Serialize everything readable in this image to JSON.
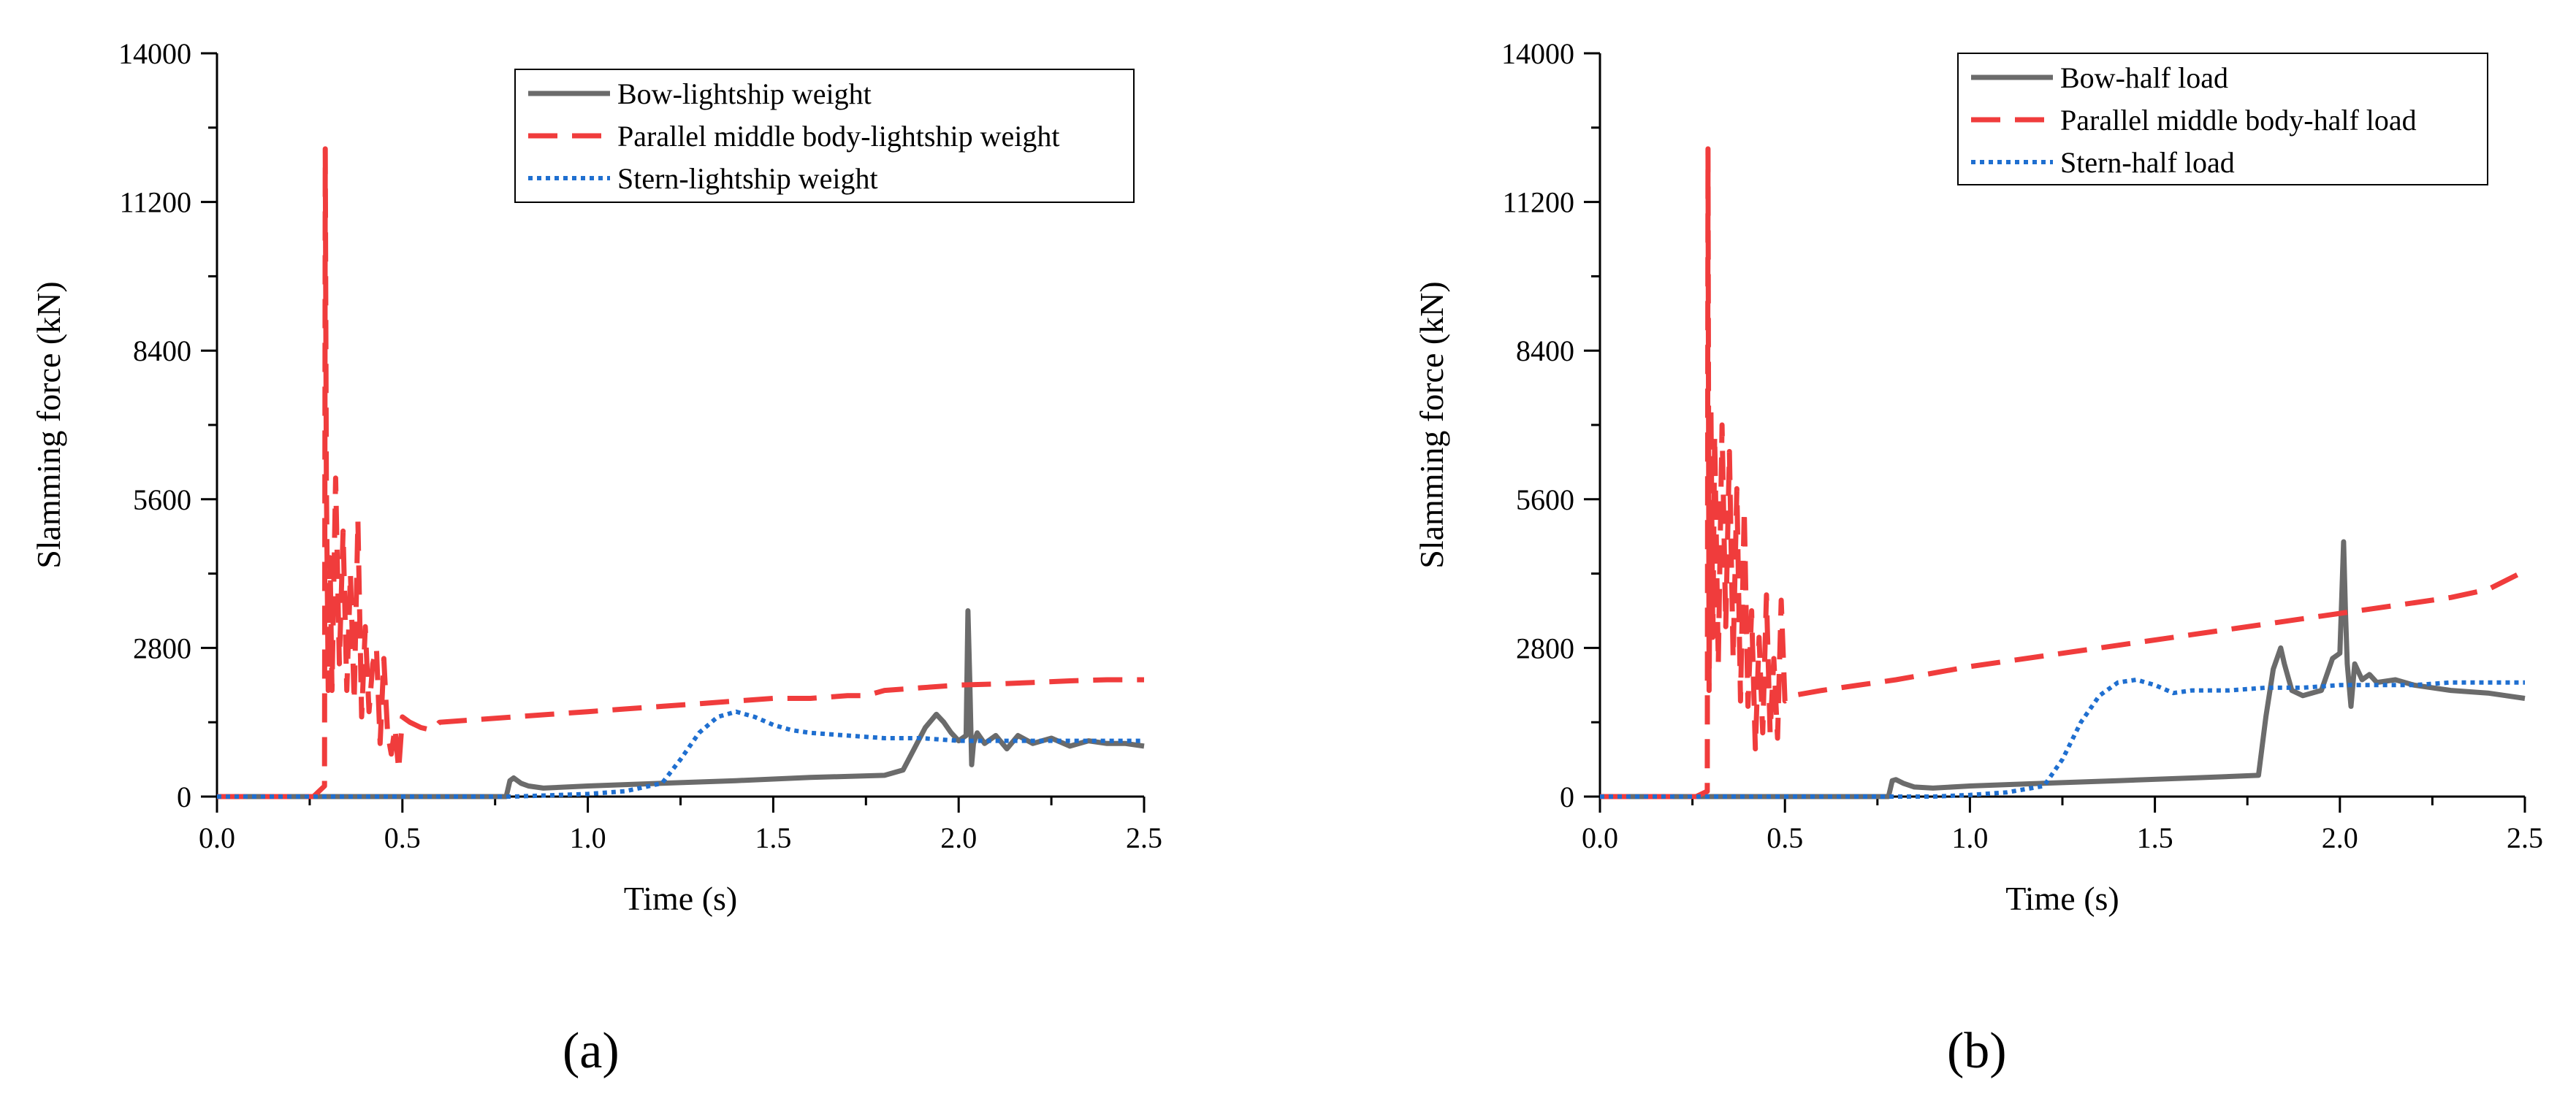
{
  "chart_data": [
    {
      "panel": "a",
      "type": "line",
      "xlabel": "Time (s)",
      "ylabel": "Slamming force (kN)",
      "xlim": [
        0.0,
        2.5
      ],
      "ylim": [
        0,
        14000
      ],
      "xticks": [
        0.0,
        0.5,
        1.0,
        1.5,
        2.0,
        2.5
      ],
      "xtick_labels": [
        "0.0",
        "0.5",
        "1.0",
        "1.5",
        "2.0",
        "2.5"
      ],
      "yticks": [
        0,
        2800,
        5600,
        8400,
        11200,
        14000
      ],
      "ytick_labels": [
        "0",
        "2800",
        "5600",
        "8400",
        "11200",
        "14000"
      ],
      "legend_position": "top-right",
      "series": [
        {
          "name": "Bow-lightship weight",
          "color": "#6b6b6b",
          "style": "solid",
          "x": [
            0,
            0.78,
            0.79,
            0.8,
            0.81,
            0.82,
            0.84,
            0.88,
            1.0,
            1.2,
            1.4,
            1.6,
            1.8,
            1.85,
            1.88,
            1.91,
            1.94,
            1.96,
            1.98,
            2.0,
            2.02,
            2.025,
            2.03,
            2.035,
            2.04,
            2.05,
            2.07,
            2.1,
            2.13,
            2.16,
            2.2,
            2.25,
            2.3,
            2.35,
            2.4,
            2.45,
            2.5
          ],
          "y": [
            0,
            0,
            300,
            350,
            300,
            250,
            200,
            160,
            200,
            250,
            300,
            360,
            400,
            500,
            900,
            1300,
            1550,
            1400,
            1200,
            1050,
            1150,
            3500,
            2200,
            600,
            1000,
            1200,
            1000,
            1150,
            900,
            1150,
            1000,
            1100,
            950,
            1050,
            1000,
            1000,
            950
          ]
        },
        {
          "name": "Parallel middle body-lightship weight",
          "color": "#f03c3c",
          "style": "dashed",
          "x": [
            0,
            0.26,
            0.29,
            0.292,
            0.295,
            0.3,
            0.305,
            0.31,
            0.32,
            0.33,
            0.34,
            0.35,
            0.36,
            0.37,
            0.38,
            0.39,
            0.4,
            0.41,
            0.42,
            0.43,
            0.44,
            0.45,
            0.46,
            0.47,
            0.48,
            0.49,
            0.5,
            0.52,
            0.55,
            0.58,
            0.6,
            0.7,
            0.8,
            0.9,
            1.0,
            1.1,
            1.2,
            1.3,
            1.4,
            1.5,
            1.6,
            1.7,
            1.75,
            1.8,
            1.9,
            2.0,
            2.1,
            2.2,
            2.3,
            2.4,
            2.5
          ],
          "y": [
            0,
            0,
            200,
            12200,
            6000,
            2000,
            4500,
            2000,
            6000,
            2500,
            5000,
            2000,
            4200,
            1800,
            5200,
            1500,
            3200,
            1600,
            2500,
            2800,
            1000,
            2600,
            1200,
            800,
            1300,
            500,
            1500,
            1400,
            1300,
            1250,
            1400,
            1450,
            1500,
            1550,
            1600,
            1650,
            1700,
            1750,
            1800,
            1850,
            1850,
            1900,
            1900,
            2000,
            2050,
            2100,
            2120,
            2150,
            2180,
            2200,
            2200
          ]
        },
        {
          "name": "Stern-lightship weight",
          "color": "#1f6fd0",
          "style": "dotted",
          "x": [
            0,
            0.8,
            1.0,
            1.1,
            1.2,
            1.25,
            1.3,
            1.35,
            1.4,
            1.45,
            1.5,
            1.55,
            1.6,
            1.7,
            1.8,
            1.9,
            2.0,
            2.1,
            2.2,
            2.3,
            2.4,
            2.5
          ],
          "y": [
            0,
            0,
            50,
            100,
            250,
            700,
            1200,
            1500,
            1600,
            1500,
            1350,
            1250,
            1200,
            1150,
            1100,
            1100,
            1050,
            1050,
            1050,
            1050,
            1050,
            1050
          ]
        }
      ],
      "caption": "(a)"
    },
    {
      "panel": "b",
      "type": "line",
      "xlabel": "Time (s)",
      "ylabel": "Slamming force (kN)",
      "xlim": [
        0.0,
        2.5
      ],
      "ylim": [
        0,
        14000
      ],
      "xticks": [
        0.0,
        0.5,
        1.0,
        1.5,
        2.0,
        2.5
      ],
      "xtick_labels": [
        "0.0",
        "0.5",
        "1.0",
        "1.5",
        "2.0",
        "2.5"
      ],
      "yticks": [
        0,
        2800,
        5600,
        8400,
        11200,
        14000
      ],
      "ytick_labels": [
        "0",
        "2800",
        "5600",
        "8400",
        "11200",
        "14000"
      ],
      "legend_position": "top-right",
      "series": [
        {
          "name": "Bow-half load",
          "color": "#6b6b6b",
          "style": "solid",
          "x": [
            0,
            0.78,
            0.79,
            0.8,
            0.82,
            0.85,
            0.9,
            1.0,
            1.2,
            1.4,
            1.6,
            1.78,
            1.8,
            1.82,
            1.84,
            1.85,
            1.87,
            1.9,
            1.95,
            1.98,
            2.0,
            2.01,
            2.015,
            2.02,
            2.03,
            2.04,
            2.06,
            2.08,
            2.1,
            2.15,
            2.2,
            2.3,
            2.4,
            2.5
          ],
          "y": [
            0,
            0,
            300,
            320,
            250,
            180,
            160,
            200,
            250,
            300,
            350,
            400,
            1500,
            2400,
            2800,
            2500,
            2000,
            1900,
            2000,
            2600,
            2700,
            4800,
            3500,
            2500,
            1700,
            2500,
            2200,
            2300,
            2150,
            2200,
            2100,
            2000,
            1950,
            1850
          ]
        },
        {
          "name": "Parallel middle body-half load",
          "color": "#f03c3c",
          "style": "dashed",
          "x": [
            0,
            0.26,
            0.29,
            0.292,
            0.295,
            0.3,
            0.305,
            0.31,
            0.32,
            0.33,
            0.34,
            0.35,
            0.36,
            0.37,
            0.38,
            0.39,
            0.4,
            0.41,
            0.42,
            0.43,
            0.44,
            0.45,
            0.46,
            0.47,
            0.48,
            0.49,
            0.5,
            0.52,
            0.6,
            0.8,
            1.0,
            1.2,
            1.4,
            1.6,
            1.8,
            2.0,
            2.2,
            2.3,
            2.4,
            2.5
          ],
          "y": [
            0,
            0,
            100,
            12200,
            2000,
            7300,
            3000,
            6800,
            2500,
            7000,
            3200,
            6500,
            2600,
            5800,
            1800,
            5400,
            1700,
            3500,
            900,
            3000,
            1200,
            3800,
            1200,
            2600,
            1100,
            3700,
            1800,
            1900,
            2000,
            2200,
            2450,
            2650,
            2850,
            3050,
            3250,
            3450,
            3650,
            3750,
            3900,
            4250
          ]
        },
        {
          "name": "Stern-half load",
          "color": "#1f6fd0",
          "style": "dotted",
          "x": [
            0,
            0.9,
            1.0,
            1.1,
            1.2,
            1.25,
            1.3,
            1.35,
            1.4,
            1.45,
            1.5,
            1.55,
            1.6,
            1.7,
            1.8,
            1.9,
            2.0,
            2.1,
            2.2,
            2.3,
            2.4,
            2.5
          ],
          "y": [
            0,
            0,
            30,
            80,
            200,
            700,
            1400,
            1900,
            2150,
            2200,
            2100,
            1950,
            2000,
            2000,
            2050,
            2050,
            2100,
            2100,
            2100,
            2150,
            2150,
            2150
          ]
        }
      ],
      "caption": "(b)"
    }
  ]
}
